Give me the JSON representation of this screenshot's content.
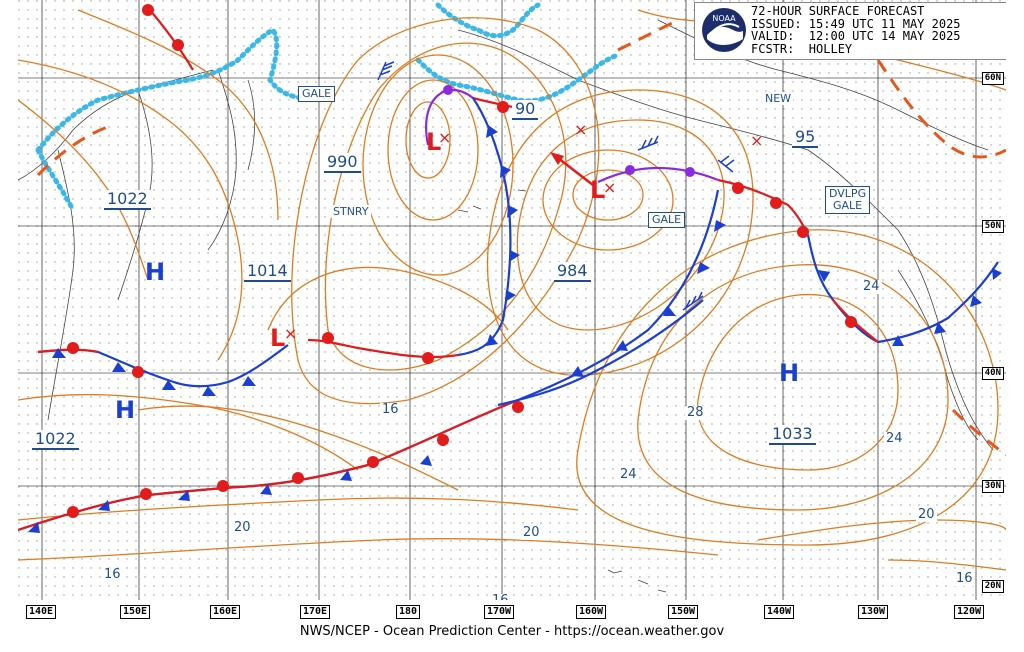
{
  "header": {
    "logo_text": "NOAA",
    "line1": "72-HOUR SURFACE FORECAST",
    "line2": "ISSUED: 15:49 UTC 11 MAY 2025",
    "line3": "VALID:  12:00 UTC 14 MAY 2025",
    "line4": "FCSTR:  HOLLEY"
  },
  "footer": "NWS/NCEP - Ocean Prediction Center - https://ocean.weather.gov",
  "latitude_labels": [
    "60N",
    "50N",
    "40N",
    "30N",
    "20N"
  ],
  "longitude_labels": [
    "140E",
    "150E",
    "160E",
    "170E",
    "180",
    "170W",
    "160W",
    "150W",
    "140W",
    "130W",
    "120W"
  ],
  "pressure_values": [
    "1022",
    "1014",
    "990",
    "984",
    "1033",
    "1022",
    "90",
    "95"
  ],
  "isobar_labels": [
    "24",
    "16",
    "28",
    "24",
    "24",
    "20",
    "20",
    "20",
    "16",
    "16",
    "16"
  ],
  "boxed_labels": [
    "GALE",
    "GALE",
    "DVLPG\nGALE"
  ],
  "plain_labels": [
    "STNRY",
    "NEW"
  ],
  "highs": [
    "H",
    "H",
    "H"
  ],
  "lows": [
    "L",
    "L",
    "L"
  ],
  "colors": {
    "isobar": "#e07b1f",
    "cold_front": "#1a3fd1",
    "warm_front": "#e21b1b",
    "occluded_front": "#8a2be2",
    "trough": "#e8561a",
    "ice_edge": "#3bb8e8",
    "label_text": "#1e4d8f"
  }
}
